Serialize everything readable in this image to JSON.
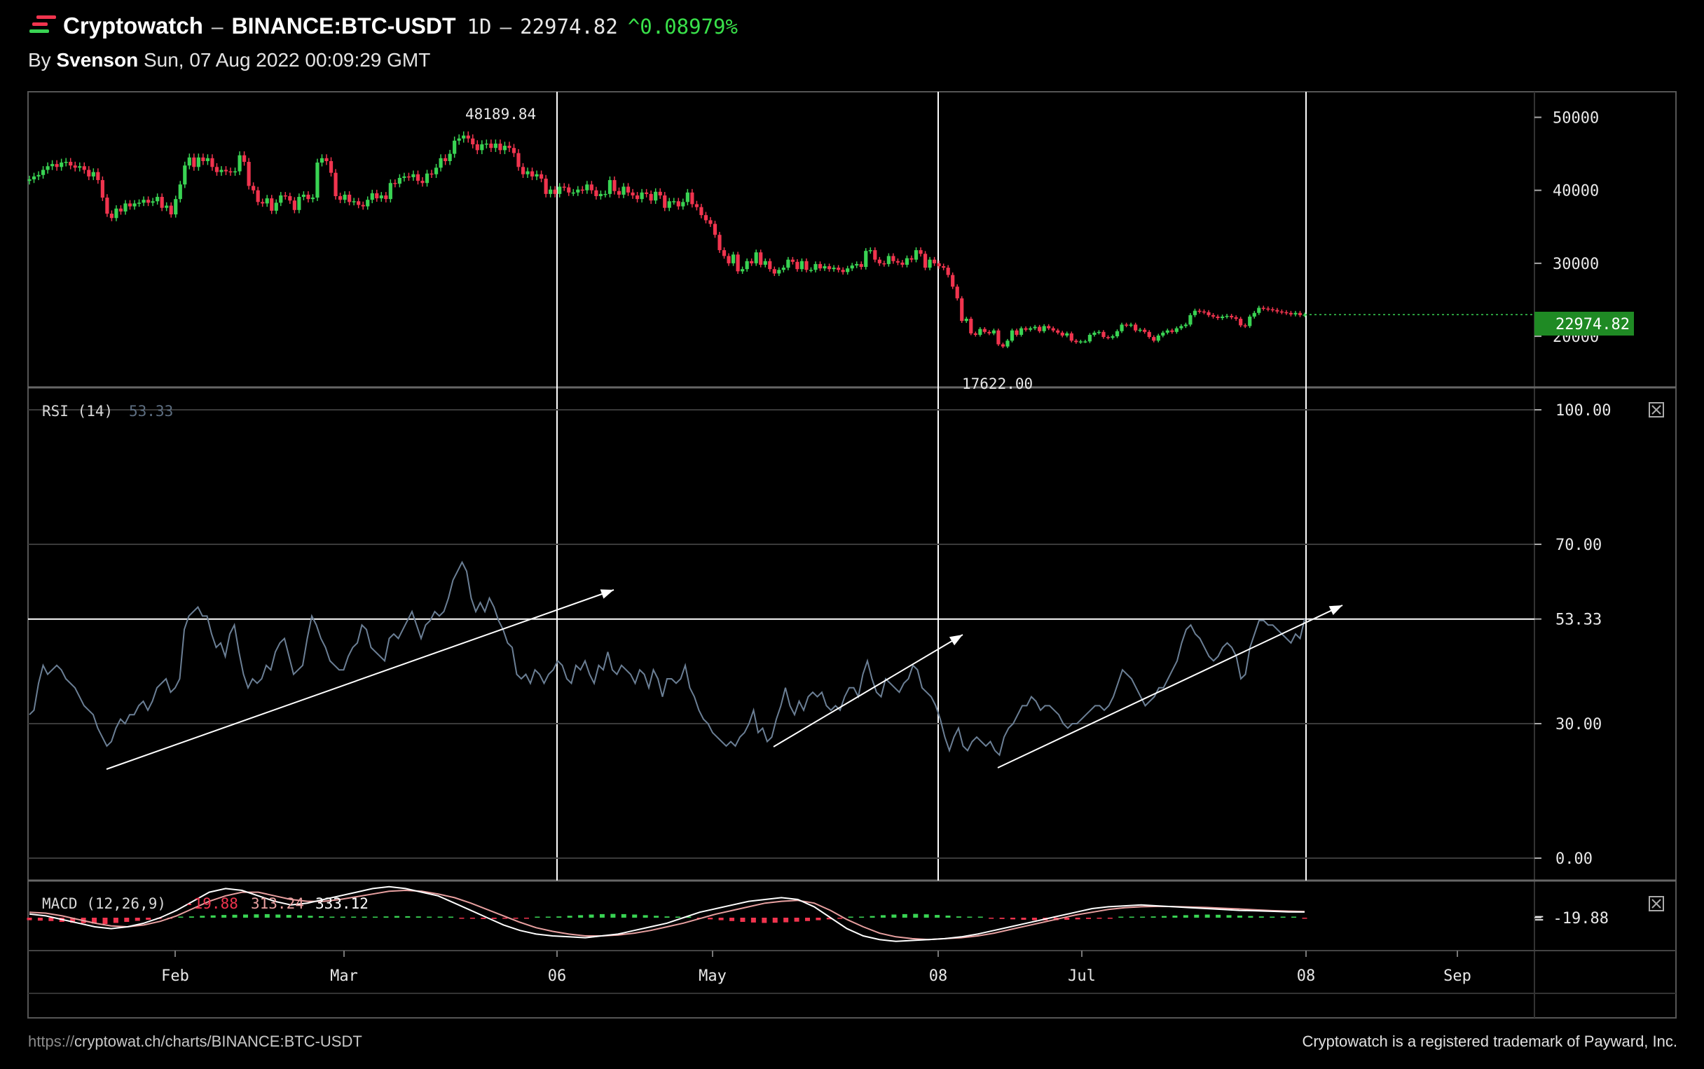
{
  "header": {
    "brand": "Cryptowatch",
    "separator": "–",
    "pair": "BINANCE:BTC-USDT",
    "interval": "1D",
    "price": "22974.82",
    "change": "^0.08979%",
    "author_prefix": "By",
    "author": "Svenson",
    "timestamp": "Sun, 07 Aug 2022 00:09:29 GMT"
  },
  "footer": {
    "url_prefix": "https://",
    "url": "cryptowat.ch/charts/BINANCE:BTC-USDT",
    "trademark": "Cryptowatch is a registered trademark of Payward, Inc."
  },
  "colors": {
    "up": "#39d353",
    "down": "#f0344e",
    "rsi_line": "#6b7f95",
    "price_tag": "#1f8a24",
    "macd_line": "#ffffff",
    "signal_line": "#e8a0a0"
  },
  "chart_data": [
    {
      "type": "candlestick",
      "price_axis": {
        "ticks": [
          50000,
          40000,
          30000,
          20000
        ],
        "labels": [
          "50000",
          "40000",
          "30000",
          "20000"
        ],
        "ylim": [
          13000,
          53500
        ]
      },
      "x_axis": {
        "ticks": [
          "Feb",
          "Mar",
          "06",
          "May",
          "08",
          "Jul",
          "08",
          "Sep"
        ]
      },
      "last_price_tag": "22974.82",
      "high_label": "48189.84",
      "low_label": "17622.00",
      "series": [
        {
          "name": "BTC-USDT",
          "closes": [
            41500,
            41900,
            42100,
            42800,
            43300,
            43600,
            43200,
            43800,
            43900,
            43400,
            43100,
            43300,
            42800,
            41900,
            42500,
            41400,
            39000,
            36800,
            36200,
            37500,
            37100,
            38200,
            37800,
            38200,
            38300,
            38700,
            38300,
            38500,
            39100,
            37600,
            37900,
            36700,
            38800,
            40800,
            43400,
            44500,
            43200,
            44500,
            44000,
            44400,
            43200,
            42500,
            42800,
            42600,
            42500,
            42600,
            44800,
            43900,
            40600,
            40000,
            38400,
            38200,
            38900,
            37200,
            38300,
            39300,
            39200,
            38600,
            37300,
            39100,
            39400,
            38800,
            39000,
            43800,
            44400,
            44000,
            42400,
            39200,
            38700,
            39400,
            38400,
            38500,
            38000,
            37800,
            38700,
            39600,
            38900,
            39300,
            38800,
            41000,
            40900,
            41700,
            41900,
            41800,
            42200,
            41300,
            41000,
            42300,
            42200,
            43100,
            44400,
            44000,
            45000,
            46800,
            47100,
            47500,
            47100,
            46300,
            45500,
            46300,
            46400,
            45800,
            46400,
            45500,
            46100,
            45800,
            45100,
            43200,
            42200,
            42600,
            41900,
            42200,
            41600,
            39500,
            40100,
            39500,
            40500,
            40400,
            39700,
            39700,
            40100,
            40000,
            40800,
            40000,
            39200,
            39500,
            39500,
            41400,
            39900,
            39400,
            40500,
            39700,
            39300,
            38800,
            39700,
            39500,
            38600,
            39800,
            39300,
            37600,
            38500,
            38500,
            37800,
            38400,
            39700,
            38100,
            37700,
            36600,
            35900,
            35400,
            33900,
            31800,
            31000,
            30000,
            31200,
            28900,
            29200,
            30300,
            30000,
            31500,
            29800,
            30300,
            29200,
            28600,
            29100,
            29400,
            30500,
            30200,
            29200,
            30300,
            29100,
            29100,
            29900,
            29300,
            29600,
            29200,
            29400,
            29100,
            28800,
            29300,
            29700,
            29900,
            29500,
            31700,
            31800,
            30500,
            30000,
            29900,
            31000,
            30300,
            30100,
            29800,
            30700,
            30500,
            31800,
            31300,
            29400,
            30500,
            30000,
            29600,
            29400,
            28400,
            26800,
            25200,
            22100,
            22400,
            20400,
            20200,
            21000,
            20600,
            20400,
            20800,
            18900,
            18600,
            19400,
            20800,
            20200,
            21100,
            20900,
            21100,
            21300,
            20700,
            21400,
            21100,
            20800,
            20500,
            20100,
            20400,
            19400,
            19200,
            19300,
            19300,
            20200,
            20500,
            20600,
            19900,
            19800,
            20000,
            20700,
            21600,
            21500,
            21600,
            20800,
            20900,
            20600,
            19900,
            19400,
            20100,
            20500,
            20800,
            20600,
            21100,
            21400,
            21600,
            22900,
            23500,
            23400,
            23300,
            22900,
            22700,
            22500,
            22700,
            22800,
            22600,
            22400,
            21500,
            21400,
            22700,
            23200,
            23900,
            23800,
            23700,
            23600,
            23400,
            23300,
            23200,
            23000,
            23200,
            22900,
            22974.82
          ]
        }
      ]
    },
    {
      "type": "line",
      "indicator": "RSI (14)",
      "current": "53.33",
      "levels": [
        "100.00",
        "70.00",
        "53.33",
        "30.00",
        "0.00"
      ],
      "ylim": [
        0,
        100
      ],
      "series": [
        {
          "name": "RSI (14)",
          "values": [
            32,
            33,
            39,
            43,
            41,
            42,
            43,
            42,
            40,
            39,
            38,
            36,
            34,
            33,
            32,
            29,
            27,
            25,
            26,
            29,
            31,
            30,
            32,
            32,
            34,
            35,
            33,
            35,
            38,
            39,
            40,
            37,
            38,
            40,
            51,
            54,
            55,
            56,
            54,
            54,
            50,
            47,
            48,
            45,
            50,
            52,
            46,
            41,
            38,
            40,
            39,
            40,
            43,
            42,
            46,
            48,
            49,
            45,
            41,
            42,
            43,
            49,
            54,
            52,
            49,
            47,
            44,
            43,
            42,
            42,
            45,
            47,
            48,
            52,
            51,
            47,
            46,
            45,
            44,
            49,
            50,
            49,
            51,
            53,
            55,
            52,
            49,
            52,
            53,
            55,
            54,
            55,
            58,
            62,
            64,
            66,
            64,
            58,
            55,
            57,
            55,
            58,
            56,
            53,
            51,
            48,
            47,
            41,
            40,
            41,
            39,
            42,
            41,
            39,
            41,
            42,
            44,
            43,
            40,
            39,
            43,
            42,
            44,
            41,
            39,
            43,
            42,
            46,
            42,
            41,
            43,
            42,
            41,
            39,
            42,
            41,
            38,
            42,
            40,
            36,
            40,
            40,
            39,
            40,
            43,
            38,
            36,
            33,
            31,
            30,
            28,
            27,
            26,
            25,
            26,
            25,
            27,
            28,
            30,
            33,
            28,
            29,
            26,
            27,
            31,
            34,
            38,
            34,
            32,
            35,
            33,
            36,
            37,
            36,
            37,
            34,
            33,
            34,
            33,
            36,
            38,
            38,
            36,
            41,
            44,
            40,
            37,
            36,
            40,
            39,
            38,
            37,
            39,
            40,
            43,
            42,
            38,
            37,
            36,
            34,
            31,
            27,
            24,
            27,
            29,
            25,
            24,
            26,
            27,
            26,
            25,
            26,
            24,
            23,
            27,
            29,
            30,
            32,
            34,
            34,
            36,
            35,
            33,
            34,
            34,
            33,
            32,
            30,
            29,
            30,
            30,
            31,
            32,
            33,
            34,
            34,
            33,
            34,
            36,
            39,
            42,
            41,
            40,
            38,
            36,
            34,
            35,
            36,
            38,
            38,
            40,
            42,
            44,
            48,
            51,
            52,
            50,
            49,
            47,
            45,
            44,
            45,
            47,
            48,
            47,
            45,
            40,
            41,
            47,
            50,
            53,
            53,
            52,
            52,
            51,
            50,
            49,
            48,
            50,
            49,
            53.33
          ]
        }
      ]
    },
    {
      "type": "bar+line",
      "indicator": "MACD (12,26,9)",
      "histogram_value": "-19.88",
      "macd_value": "313.24",
      "signal_value": "333.12",
      "axis_label": "-19.88",
      "series": [
        {
          "name": "histogram",
          "values": [
            -120,
            -140,
            -160,
            -200,
            -240,
            -260,
            -280,
            -300,
            -250,
            -200,
            -150,
            -100,
            -60,
            -20,
            20,
            60,
            90,
            110,
            130,
            140,
            150,
            160,
            170,
            150,
            130,
            110,
            90,
            70,
            50,
            40,
            30,
            20,
            40,
            60,
            80,
            70,
            60,
            40,
            20,
            0,
            -20,
            -40,
            -60,
            -60,
            -50,
            -40,
            -20,
            0,
            30,
            60,
            90,
            120,
            150,
            170,
            180,
            170,
            150,
            120,
            90,
            60,
            30,
            0,
            -40,
            -80,
            -120,
            -160,
            -200,
            -230,
            -250,
            -240,
            -220,
            -190,
            -160,
            -120,
            -80,
            -40,
            0,
            40,
            80,
            120,
            150,
            170,
            180,
            160,
            130,
            100,
            60,
            30,
            0,
            -30,
            -60,
            -80,
            -100,
            -120,
            -130,
            -120,
            -100,
            -80,
            -60,
            -40,
            -20,
            0,
            20,
            40,
            60,
            80,
            100,
            120,
            140,
            150,
            140,
            120,
            100,
            80,
            60,
            40,
            20,
            0,
            -19.88
          ]
        },
        {
          "name": "MACD",
          "values": [
            200,
            100,
            -100,
            -300,
            -500,
            -600,
            -500,
            -300,
            0,
            400,
            900,
            1400,
            1600,
            1500,
            1200,
            900,
            700,
            800,
            1000,
            1200,
            1400,
            1600,
            1700,
            1600,
            1400,
            1200,
            800,
            400,
            0,
            -400,
            -700,
            -900,
            -1000,
            -1050,
            -1100,
            -1000,
            -900,
            -700,
            -500,
            -300,
            0,
            300,
            500,
            700,
            900,
            1000,
            1100,
            1000,
            600,
            0,
            -600,
            -1000,
            -1200,
            -1300,
            -1250,
            -1200,
            -1150,
            -1050,
            -900,
            -700,
            -500,
            -300,
            -100,
            100,
            300,
            500,
            600,
            650,
            700,
            650,
            600,
            550,
            500,
            450,
            400,
            380,
            350,
            320,
            313.24
          ]
        },
        {
          "name": "Signal",
          "values": [
            300,
            250,
            100,
            -100,
            -300,
            -450,
            -500,
            -400,
            -200,
            100,
            500,
            900,
            1200,
            1400,
            1400,
            1200,
            1000,
            900,
            900,
            1000,
            1150,
            1300,
            1450,
            1500,
            1450,
            1300,
            1100,
            800,
            450,
            100,
            -250,
            -550,
            -750,
            -900,
            -1000,
            -1000,
            -950,
            -850,
            -700,
            -500,
            -300,
            -50,
            200,
            400,
            600,
            800,
            900,
            950,
            800,
            400,
            -100,
            -500,
            -850,
            -1050,
            -1150,
            -1200,
            -1150,
            -1100,
            -1000,
            -850,
            -650,
            -450,
            -250,
            -50,
            150,
            300,
            450,
            550,
            600,
            620,
            610,
            590,
            560,
            520,
            480,
            430,
            390,
            360,
            333.12
          ]
        }
      ]
    }
  ],
  "icons": {
    "close_rsi": "close-icon",
    "close_macd": "close-icon"
  }
}
